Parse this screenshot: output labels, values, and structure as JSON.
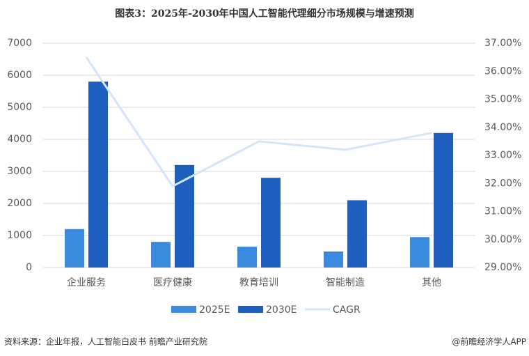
{
  "chart_data": {
    "type": "bar-line",
    "title": "图表3：2025年-2030年中国人工智能代理细分市场规模与增速预测",
    "categories": [
      "企业服务",
      "医疗健康",
      "教育培训",
      "智能制造",
      "其他"
    ],
    "series": [
      {
        "name": "2025E",
        "color": "#3a8ae0",
        "type": "bar",
        "values": [
          1200,
          800,
          650,
          500,
          950
        ]
      },
      {
        "name": "2030E",
        "color": "#1d5fbf",
        "type": "bar",
        "values": [
          5800,
          3200,
          2800,
          2100,
          4200
        ]
      },
      {
        "name": "CAGR",
        "color": "#d5e5f7",
        "type": "line",
        "axis": "y2",
        "values": [
          36.5,
          31.9,
          33.5,
          33.2,
          33.8
        ]
      }
    ],
    "ylim": [
      0,
      7000
    ],
    "yticks": [
      0,
      1000,
      2000,
      3000,
      4000,
      5000,
      6000,
      7000
    ],
    "y2lim": [
      29,
      37
    ],
    "y2ticks": [
      {
        "value": 29,
        "label": "29.00%"
      },
      {
        "value": 30,
        "label": "30.00%"
      },
      {
        "value": 31,
        "label": "31.00%"
      },
      {
        "value": 32,
        "label": "32.00%"
      },
      {
        "value": 33,
        "label": "33.00%"
      },
      {
        "value": 34,
        "label": "34.00%"
      },
      {
        "value": 35,
        "label": "35.00%"
      },
      {
        "value": 36,
        "label": "36.00%"
      },
      {
        "value": 37,
        "label": "37.00%"
      }
    ],
    "grid": true,
    "legend": "bottom",
    "source": "资料来源：企业年报，人工智能白皮书 前瞻产业研究院",
    "credit": "@前瞻经济学人APP"
  }
}
